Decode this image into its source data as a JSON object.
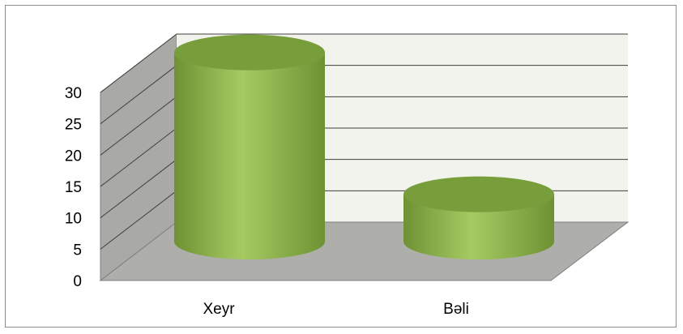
{
  "chart_data": {
    "type": "bar",
    "style": "3d-cylinder",
    "categories": [
      "Xeyr",
      "Bəli"
    ],
    "values": [
      28,
      7
    ],
    "ylim": [
      0,
      30
    ],
    "yticks": [
      0,
      5,
      10,
      15,
      20,
      25,
      30
    ],
    "title": "",
    "xlabel": "",
    "ylabel": "",
    "legend": "none",
    "grid": true
  },
  "colors": {
    "bar_body": "#8db848",
    "bar_body_light": "#a6ca62",
    "bar_body_dark": "#6e9233",
    "bar_top": "#779e3b",
    "back_wall": "#f2f3ed",
    "side_wall": "#a9aaa5",
    "floor": "#aeafaa",
    "gridline": "#404040"
  }
}
